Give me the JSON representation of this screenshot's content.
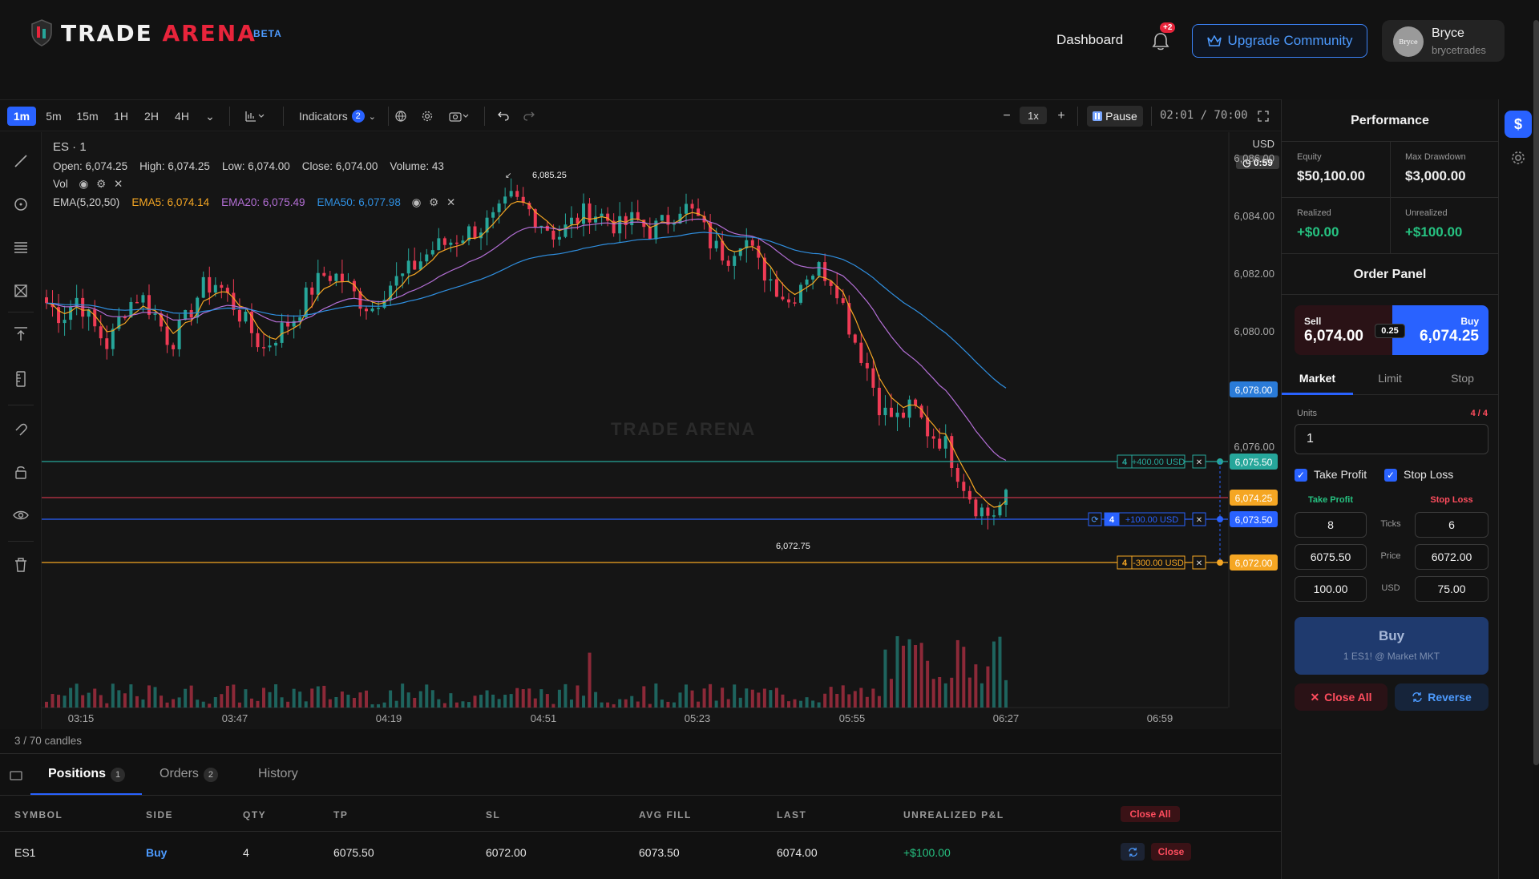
{
  "header": {
    "logo_white": "TRADE",
    "logo_red": "ARENA",
    "beta": "BETA",
    "nav_dashboard": "Dashboard",
    "notifications_badge": "+2",
    "upgrade_label": "Upgrade Community",
    "user_name": "Bryce",
    "user_handle": "brycetrades",
    "avatar_text": "Bryce"
  },
  "toolbar": {
    "timeframes": [
      "1m",
      "5m",
      "15m",
      "1H",
      "2H",
      "4H"
    ],
    "active_timeframe": "1m",
    "indicators_label": "Indicators",
    "indicators_count": "2",
    "speed": "1x",
    "pause_label": "Pause",
    "clock": "02:01 / 70:00"
  },
  "legend": {
    "symbol": "ES · 1",
    "open": "Open: 6,074.25",
    "high": "High: 6,074.25",
    "low": "Low: 6,074.00",
    "close": "Close: 6,074.00",
    "volume": "Volume: 43",
    "vol_label": "Vol",
    "ema_label": "EMA(5,20,50)",
    "ema5": "EMA5: 6,074.14",
    "ema20": "EMA20: 6,075.49",
    "ema50": "EMA50: 6,077.98",
    "watermark": "TRADE ARENA"
  },
  "chart_data": {
    "type": "candlestick",
    "symbol": "ES",
    "currency": "USD",
    "countdown": "0:59",
    "y_ticks": [
      "6,086.00",
      "6,084.00",
      "6,082.00",
      "6,080.00",
      "6,078.00",
      "6,076.00"
    ],
    "x_ticks": [
      "03:15",
      "03:47",
      "04:19",
      "04:51",
      "05:23",
      "05:55",
      "06:27",
      "06:59"
    ],
    "ylim": [
      6071.5,
      6087.0
    ],
    "high_marker": "6,085.25",
    "low_marker": "6,072.75",
    "current_price_label": "6,074.25",
    "blue_label": "6,078.00",
    "series_path": [
      6081.0,
      6080.5,
      6081.2,
      6080.2,
      6079.5,
      6080.8,
      6081.3,
      6080.6,
      6079.6,
      6080.4,
      6081.5,
      6081.7,
      6081.0,
      6080.2,
      6079.4,
      6080.0,
      6080.5,
      6081.4,
      6082.0,
      6081.9,
      6081.2,
      6080.8,
      6081.6,
      6081.9,
      6082.4,
      6082.9,
      6083.1,
      6083.4,
      6083.6,
      6083.9,
      6084.6,
      6084.3,
      6083.8,
      6083.3,
      6083.8,
      6084.2,
      6084.0,
      6083.6,
      6083.9,
      6083.5,
      6083.8,
      6084.4,
      6084.0,
      6083.0,
      6082.6,
      6083.4,
      6082.3,
      6081.7,
      6081.0,
      6082.0,
      6082.2,
      6081.7,
      6080.0,
      6078.8,
      6077.2,
      6077.0,
      6077.4,
      6076.5,
      6076.2,
      6075.0,
      6074.0,
      6073.6,
      6074.2
    ],
    "orders": [
      {
        "label": "+400.00 USD",
        "qty": "4",
        "price": "6,075.50",
        "color": "#26a69a"
      },
      {
        "label": "+100.00 USD",
        "qty": "4",
        "price": "6,073.50",
        "color": "#2962ff"
      },
      {
        "label": "-300.00 USD",
        "qty": "4",
        "price": "6,072.00",
        "color": "#f5a623"
      }
    ]
  },
  "candles_note": "3 / 70 candles",
  "bottom": {
    "tabs": [
      {
        "label": "Positions",
        "count": "1"
      },
      {
        "label": "Orders",
        "count": "2"
      },
      {
        "label": "History",
        "count": ""
      }
    ],
    "headers": [
      "SYMBOL",
      "SIDE",
      "QTY",
      "TP",
      "SL",
      "AVG FILL",
      "LAST",
      "UNREALIZED P&L"
    ],
    "close_all": "Close All",
    "rows": [
      {
        "symbol": "ES1",
        "side": "Buy",
        "qty": "4",
        "tp": "6075.50",
        "sl": "6072.00",
        "avg": "6073.50",
        "last": "6074.00",
        "pnl": "+$100.00",
        "close": "Close"
      }
    ]
  },
  "performance": {
    "title": "Performance",
    "equity_label": "Equity",
    "equity": "$50,100.00",
    "dd_label": "Max Drawdown",
    "dd": "$3,000.00",
    "realized_label": "Realized",
    "realized": "+$0.00",
    "unrealized_label": "Unrealized",
    "unrealized": "+$100.00"
  },
  "order_panel": {
    "title": "Order Panel",
    "sell_label": "Sell",
    "sell_price": "6,074.00",
    "spread": "0.25",
    "buy_label": "Buy",
    "buy_price": "6,074.25",
    "tabs": [
      "Market",
      "Limit",
      "Stop"
    ],
    "units_label": "Units",
    "units_count": "4 / 4",
    "units_value": "1",
    "take_profit": "Take Profit",
    "stop_loss": "Stop Loss",
    "ticks_label": "Ticks",
    "price_label": "Price",
    "usd_label": "USD",
    "tp_ticks": "8",
    "sl_ticks": "6",
    "tp_price": "6075.50",
    "sl_price": "6072.00",
    "tp_usd": "100.00",
    "sl_usd": "75.00",
    "buy_button": "Buy",
    "buy_sub": "1 ES1! @ Market MKT",
    "close_all": "Close All",
    "reverse": "Reverse"
  },
  "colors": {
    "accent": "#2962ff",
    "up": "#26a69a",
    "down": "#ef3b55",
    "ema5": "#f5a623",
    "ema20": "#b46fd6",
    "ema50": "#2f8fe0"
  }
}
